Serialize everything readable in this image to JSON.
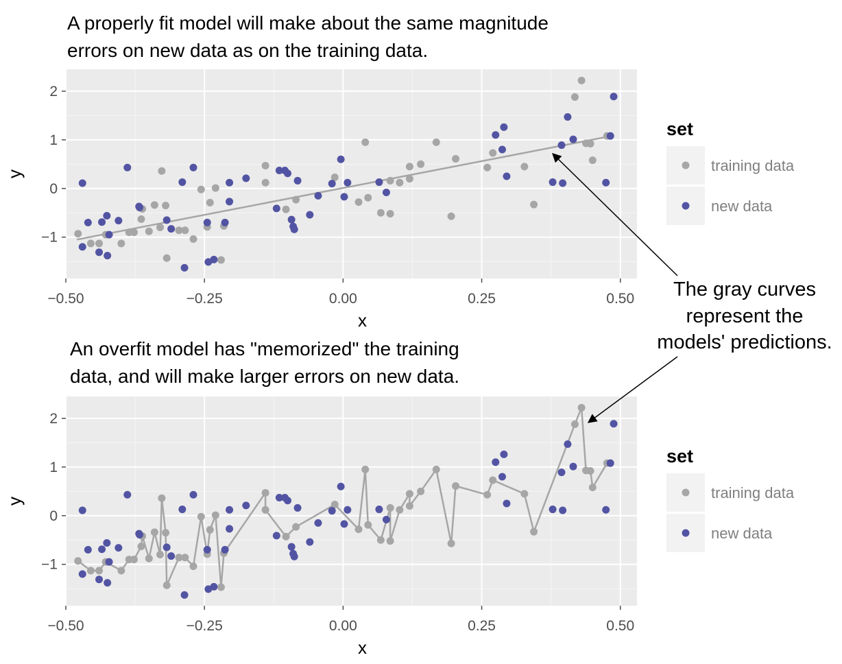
{
  "chart_data": [
    {
      "type": "scatter",
      "title": [
        "A properly fit model will make about the same magnitude",
        "errors on new data as on the training data."
      ],
      "xlabel": "x",
      "ylabel": "y",
      "xlim": [
        -0.5,
        0.53
      ],
      "ylim": [
        -1.85,
        2.45
      ],
      "xticks": [
        -0.5,
        -0.25,
        0.0,
        0.25,
        0.5
      ],
      "xtick_labels": [
        "−0.50",
        "−0.25",
        "0.00",
        "0.25",
        "0.50"
      ],
      "yticks": [
        -1,
        0,
        1,
        2
      ],
      "ytick_labels": [
        "−1",
        "0",
        "1",
        "2"
      ],
      "fit_line": {
        "x": [
          -0.48,
          0.48
        ],
        "y": [
          -1.05,
          1.07
        ]
      },
      "series": [
        {
          "name": "training data",
          "color": "#a6a6a6",
          "points": [
            [
              -0.478,
              -0.93
            ],
            [
              -0.455,
              -1.13
            ],
            [
              -0.44,
              -1.13
            ],
            [
              -0.428,
              -0.95
            ],
            [
              -0.4,
              -1.13
            ],
            [
              -0.386,
              -0.9
            ],
            [
              -0.377,
              -0.9
            ],
            [
              -0.364,
              -0.63
            ],
            [
              -0.362,
              -0.42
            ],
            [
              -0.35,
              -0.88
            ],
            [
              -0.34,
              -0.34
            ],
            [
              -0.33,
              -0.8
            ],
            [
              -0.327,
              0.36
            ],
            [
              -0.32,
              -0.35
            ],
            [
              -0.318,
              -1.43
            ],
            [
              -0.296,
              -0.86
            ],
            [
              -0.285,
              -0.86
            ],
            [
              -0.27,
              -1.04
            ],
            [
              -0.256,
              -0.02
            ],
            [
              -0.245,
              -0.79
            ],
            [
              -0.24,
              -0.29
            ],
            [
              -0.23,
              0.01
            ],
            [
              -0.22,
              -1.47
            ],
            [
              -0.215,
              -0.77
            ],
            [
              -0.14,
              0.47
            ],
            [
              -0.14,
              0.12
            ],
            [
              -0.103,
              -0.43
            ],
            [
              -0.085,
              -0.23
            ],
            [
              -0.015,
              0.23
            ],
            [
              0.028,
              -0.28
            ],
            [
              0.04,
              0.95
            ],
            [
              0.045,
              -0.19
            ],
            [
              0.068,
              -0.5
            ],
            [
              0.085,
              0.16
            ],
            [
              0.085,
              -0.52
            ],
            [
              0.102,
              0.12
            ],
            [
              0.12,
              0.45
            ],
            [
              0.12,
              0.2
            ],
            [
              0.14,
              0.5
            ],
            [
              0.168,
              0.95
            ],
            [
              0.195,
              -0.57
            ],
            [
              0.203,
              0.61
            ],
            [
              0.26,
              0.43
            ],
            [
              0.27,
              0.73
            ],
            [
              0.327,
              0.45
            ],
            [
              0.344,
              -0.33
            ],
            [
              0.418,
              1.88
            ],
            [
              0.43,
              2.22
            ],
            [
              0.438,
              0.93
            ],
            [
              0.446,
              0.92
            ],
            [
              0.45,
              0.58
            ],
            [
              0.476,
              1.08
            ]
          ]
        },
        {
          "name": "new data",
          "color": "#5254a3",
          "points": [
            [
              -0.47,
              0.11
            ],
            [
              -0.47,
              -1.2
            ],
            [
              -0.46,
              -0.7
            ],
            [
              -0.44,
              -1.31
            ],
            [
              -0.435,
              -0.69
            ],
            [
              -0.426,
              -0.56
            ],
            [
              -0.425,
              -1.38
            ],
            [
              -0.422,
              -0.95
            ],
            [
              -0.405,
              -0.66
            ],
            [
              -0.389,
              0.43
            ],
            [
              -0.368,
              -0.37
            ],
            [
              -0.367,
              -0.39
            ],
            [
              -0.318,
              -0.65
            ],
            [
              -0.31,
              -0.83
            ],
            [
              -0.29,
              0.13
            ],
            [
              -0.286,
              -1.63
            ],
            [
              -0.27,
              0.43
            ],
            [
              -0.245,
              -0.7
            ],
            [
              -0.243,
              -1.51
            ],
            [
              -0.233,
              -1.46
            ],
            [
              -0.213,
              -0.7
            ],
            [
              -0.205,
              0.12
            ],
            [
              -0.205,
              -0.27
            ],
            [
              -0.175,
              0.21
            ],
            [
              -0.12,
              -0.41
            ],
            [
              -0.115,
              0.37
            ],
            [
              -0.105,
              0.37
            ],
            [
              -0.1,
              0.31
            ],
            [
              -0.093,
              -0.64
            ],
            [
              -0.09,
              -0.78
            ],
            [
              -0.088,
              -0.84
            ],
            [
              -0.082,
              0.16
            ],
            [
              -0.06,
              -0.54
            ],
            [
              -0.045,
              -0.15
            ],
            [
              -0.02,
              0.1
            ],
            [
              -0.004,
              0.6
            ],
            [
              0.002,
              -0.17
            ],
            [
              0.008,
              0.12
            ],
            [
              0.065,
              0.13
            ],
            [
              0.078,
              -0.08
            ],
            [
              0.275,
              1.1
            ],
            [
              0.287,
              0.8
            ],
            [
              0.29,
              1.26
            ],
            [
              0.295,
              0.25
            ],
            [
              0.378,
              0.13
            ],
            [
              0.394,
              0.89
            ],
            [
              0.396,
              0.11
            ],
            [
              0.405,
              1.47
            ],
            [
              0.415,
              1.01
            ],
            [
              0.474,
              0.12
            ],
            [
              0.482,
              1.08
            ],
            [
              0.488,
              1.89
            ]
          ]
        }
      ]
    },
    {
      "type": "scatter",
      "title": [
        "An overfit model has \"memorized\" the training",
        "data, and will make larger errors on new data."
      ],
      "xlabel": "x",
      "ylabel": "y",
      "xlim": [
        -0.5,
        0.53
      ],
      "ylim": [
        -1.85,
        2.45
      ],
      "xticks": [
        -0.5,
        -0.25,
        0.0,
        0.25,
        0.5
      ],
      "xtick_labels": [
        "−0.50",
        "−0.25",
        "0.00",
        "0.25",
        "0.50"
      ],
      "yticks": [
        -1,
        0,
        1,
        2
      ],
      "ytick_labels": [
        "−1",
        "0",
        "1",
        "2"
      ],
      "curve": "connects training data points in order of x",
      "series_ref": "same training data and new data as the first panel"
    }
  ],
  "legends": [
    {
      "title": "set",
      "items": [
        "training data",
        "new data"
      ]
    },
    {
      "title": "set",
      "items": [
        "training data",
        "new data"
      ]
    }
  ],
  "annotation": [
    "The gray curves",
    "represent the",
    "models' predictions."
  ],
  "colors": {
    "panel": "#ebebeb",
    "grid_major": "#ffffff",
    "grid_minor": "#f5f5f5",
    "training": "#a6a6a6",
    "new": "#5254a3",
    "fit_line": "#a6a6a6",
    "legend_key": "#f2f2f2"
  }
}
